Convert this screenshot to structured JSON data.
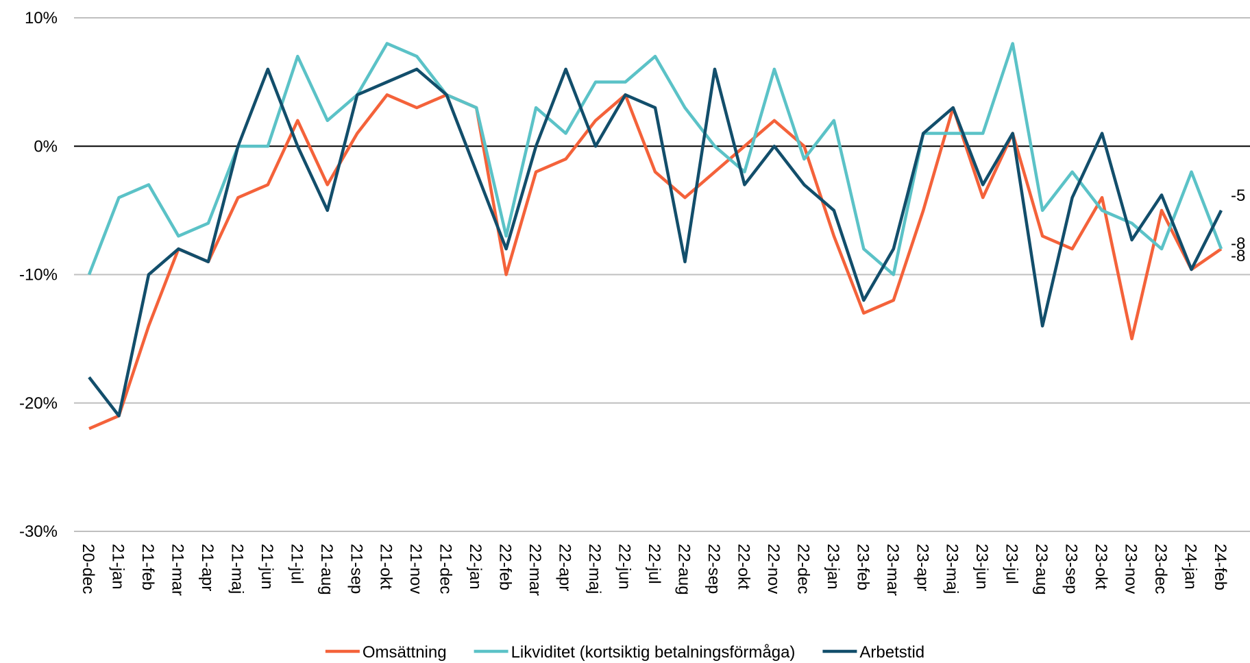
{
  "chart_data": {
    "type": "line",
    "categories": [
      "20-dec",
      "21-jan",
      "21-feb",
      "21-mar",
      "21-apr",
      "21-maj",
      "21-jun",
      "21-jul",
      "21-aug",
      "21-sep",
      "21-okt",
      "21-nov",
      "21-dec",
      "22-jan",
      "22-feb",
      "22-mar",
      "22-apr",
      "22-maj",
      "22-jun",
      "22-jul",
      "22-aug",
      "22-sep",
      "22-okt",
      "22-nov",
      "22-dec",
      "23-jan",
      "23-feb",
      "23-mar",
      "23-apr",
      "23-maj",
      "23-jun",
      "23-jul",
      "23-aug",
      "23-sep",
      "23-okt",
      "23-nov",
      "23-dec",
      "24-jan",
      "24-feb"
    ],
    "series": [
      {
        "name": "Omsättning",
        "color": "#f4623a",
        "values": [
          -22,
          -21,
          -14,
          -8,
          -9,
          -4,
          -3,
          2,
          -3,
          1,
          4,
          3,
          4,
          3,
          -10,
          -2,
          -1,
          2,
          4,
          -2,
          -4,
          -2,
          0,
          2,
          0,
          -7,
          -13,
          -12,
          -5,
          3,
          -4,
          1,
          -7,
          -8,
          -4,
          -15,
          -5,
          -9.6,
          -8
        ]
      },
      {
        "name": "Likviditet (kortsiktig betalningsförmåga)",
        "color": "#5bc2c7",
        "values": [
          -10,
          -4,
          -3,
          -7,
          -6,
          0,
          0,
          7,
          2,
          4,
          8,
          7,
          4,
          3,
          -7,
          3,
          1,
          5,
          5,
          7,
          3,
          0,
          -2,
          6,
          -1,
          2,
          -8,
          -10,
          1,
          1,
          1,
          8,
          -5,
          -2,
          -5,
          -6,
          -8,
          -2,
          -8
        ]
      },
      {
        "name": "Arbetstid",
        "color": "#124e6b",
        "values": [
          -18,
          -21,
          -10,
          -8,
          -9,
          0,
          6,
          0,
          -5,
          4,
          5,
          6,
          4,
          -2,
          -8,
          0,
          6,
          0,
          4,
          3,
          -9,
          6,
          -3,
          0,
          -3,
          -5,
          -12,
          -8,
          1,
          3,
          -3,
          1,
          -14,
          -4,
          1,
          -7.3,
          -3.8,
          -9.6,
          -5
        ]
      }
    ],
    "ylim": [
      -30,
      10
    ],
    "yticks": [
      {
        "value": -30,
        "label": "-30%"
      },
      {
        "value": -20,
        "label": "-20%"
      },
      {
        "value": -10,
        "label": "-10%"
      },
      {
        "value": 0,
        "label": "0%"
      },
      {
        "value": 10,
        "label": "10%"
      }
    ],
    "grid": true,
    "legend": "bottom"
  }
}
